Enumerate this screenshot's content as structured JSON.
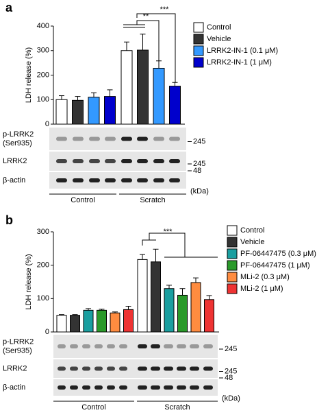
{
  "chart_data": [
    {
      "type": "bar",
      "panel": "a",
      "y_label": "LDH release (%)",
      "categories": [
        "Control",
        "Scratch"
      ],
      "series": [
        {
          "name": "Control",
          "color": "#ffffff",
          "values": [
            100,
            300
          ],
          "errors": [
            16,
            35
          ]
        },
        {
          "name": "Vehicle",
          "color": "#333333",
          "values": [
            97,
            302
          ],
          "errors": [
            16,
            65
          ]
        },
        {
          "name": "LRRK2-IN-1 (0.1 μM)",
          "color": "#3399ff",
          "values": [
            110,
            228
          ],
          "errors": [
            18,
            30
          ]
        },
        {
          "name": "LRRK2-IN-1 (1 μM)",
          "color": "#0000cc",
          "values": [
            113,
            155
          ],
          "errors": [
            27,
            15
          ]
        }
      ],
      "ylim": [
        0,
        400
      ],
      "yticks": [
        0,
        100,
        200,
        300,
        400
      ],
      "annotations": [
        "**",
        "***"
      ],
      "blots": [
        {
          "label": [
            "p-LRRK2",
            "(Ser935)"
          ],
          "kda": "245"
        },
        {
          "label": [
            "LRRK2"
          ],
          "kda": "245"
        },
        {
          "label": [
            "β-actin"
          ],
          "kda": "48"
        }
      ],
      "kda_unit": "(kDa)"
    },
    {
      "type": "bar",
      "panel": "b",
      "y_label": "LDH release (%)",
      "categories": [
        "Control",
        "Scratch"
      ],
      "series": [
        {
          "name": "Control",
          "color": "#ffffff",
          "values": [
            50,
            217
          ],
          "errors": [
            2,
            15
          ]
        },
        {
          "name": "Vehicle",
          "color": "#333333",
          "values": [
            50,
            210
          ],
          "errors": [
            2,
            38
          ]
        },
        {
          "name": "PF-06447475 (0.3 μM)",
          "color": "#1a9fa0",
          "values": [
            65,
            130
          ],
          "errors": [
            5,
            10
          ]
        },
        {
          "name": "PF-06447475 (1 μM)",
          "color": "#2a9a2a",
          "values": [
            65,
            110
          ],
          "errors": [
            3,
            20
          ]
        },
        {
          "name": "MLi-2 (0.3 μM)",
          "color": "#ff8c40",
          "values": [
            57,
            148
          ],
          "errors": [
            3,
            14
          ]
        },
        {
          "name": "MLi-2 (1 μM)",
          "color": "#ee3333",
          "values": [
            67,
            97
          ],
          "errors": [
            10,
            12
          ]
        }
      ],
      "ylim": [
        0,
        300
      ],
      "yticks": [
        0,
        100,
        200,
        300
      ],
      "annotations": [
        "***"
      ],
      "blots": [
        {
          "label": [
            "p-LRRK2",
            "(Ser935)"
          ],
          "kda": "245"
        },
        {
          "label": [
            "LRRK2"
          ],
          "kda": "245"
        },
        {
          "label": [
            "β-actin"
          ],
          "kda": "48"
        }
      ],
      "kda_unit": "(kDa)"
    }
  ]
}
